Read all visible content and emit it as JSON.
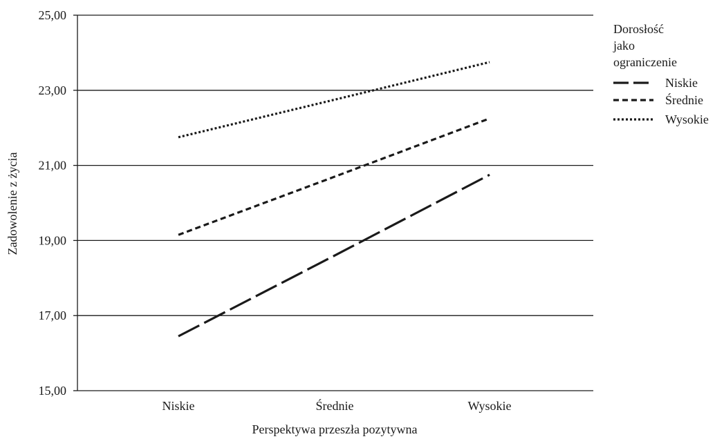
{
  "chart_data": {
    "type": "line",
    "categories": [
      "Niskie",
      "Średnie",
      "Wysokie"
    ],
    "series": [
      {
        "name": "Niskie",
        "values": [
          16.45,
          18.6,
          20.75
        ],
        "dash": "long-dash"
      },
      {
        "name": "Średnie",
        "values": [
          19.15,
          20.7,
          22.25
        ],
        "dash": "short-dash"
      },
      {
        "name": "Wysokie",
        "values": [
          21.75,
          22.75,
          23.75
        ],
        "dash": "dotted"
      }
    ],
    "xlabel": "Perspektywa przeszła pozytywna",
    "ylabel": "Zadowolenie z życia",
    "ylim": [
      15,
      25
    ],
    "yticks": [
      "15,00",
      "17,00",
      "19,00",
      "21,00",
      "23,00",
      "25,00"
    ],
    "ytick_values": [
      15,
      17,
      19,
      21,
      23,
      25
    ],
    "grid": "horizontal",
    "legend": {
      "title_lines": [
        "Dorosłość",
        "jako",
        "ograniczenie"
      ],
      "placement": "right"
    },
    "colors": {
      "lines": "#1a1a1a",
      "grid": "#1a1a1a"
    }
  }
}
